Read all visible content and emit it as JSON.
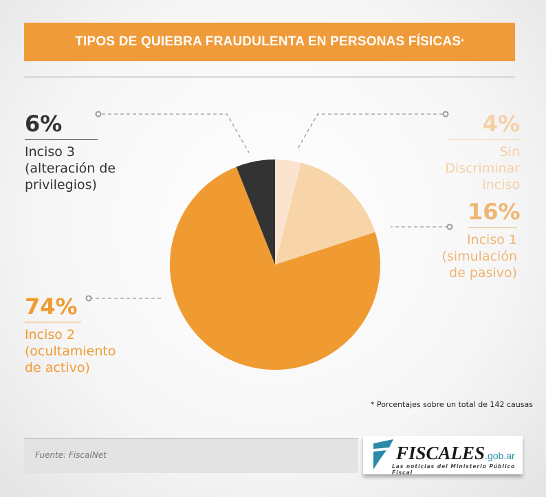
{
  "chart_data": {
    "type": "pie",
    "title": "TIPOS DE QUIEBRA FRAUDULENTA EN PERSONAS FÍSICAS",
    "title_mark": "*",
    "slices": [
      {
        "pct_label": "4%",
        "value": 4,
        "label": "Sin Discriminar inciso",
        "color": "#fbe4cf",
        "text_color": "#f5cfa6"
      },
      {
        "pct_label": "16%",
        "value": 16,
        "label": "Inciso 1 (simulación de pasivo)",
        "color": "#f8d4a9",
        "text_color": "#f0b473"
      },
      {
        "pct_label": "74%",
        "value": 74,
        "label": "Inciso 2 (ocultamiento de activo)",
        "color": "#f09b32",
        "text_color": "#f09b32"
      },
      {
        "pct_label": "6%",
        "value": 6,
        "label": "Inciso 3 (alteración de privilegios)",
        "color": "#333333",
        "text_color": "#333333"
      }
    ],
    "note": "* Porcentajes sobre un total de 142 causas"
  },
  "footer": {
    "source": "Fuente: FiscalNet"
  },
  "logo": {
    "name": "FISCALES",
    "domain": ".gob.ar",
    "tagline": "Las noticias del Ministerio Público Fiscal"
  }
}
